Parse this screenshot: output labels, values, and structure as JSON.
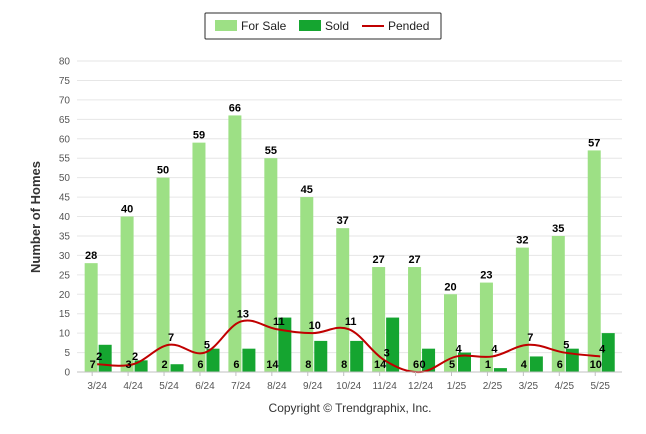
{
  "colors": {
    "for_sale": "#9de085",
    "sold": "#15a530",
    "pended": "#c00000"
  },
  "chart_data": {
    "type": "bar",
    "categories": [
      "3/24",
      "4/24",
      "5/24",
      "6/24",
      "7/24",
      "8/24",
      "9/24",
      "10/24",
      "11/24",
      "12/24",
      "1/25",
      "2/25",
      "3/25",
      "4/25",
      "5/25"
    ],
    "series": [
      {
        "name": "For Sale",
        "type": "bar",
        "values": [
          28,
          40,
          50,
          59,
          66,
          55,
          45,
          37,
          27,
          27,
          20,
          23,
          32,
          35,
          57
        ]
      },
      {
        "name": "Sold",
        "type": "bar",
        "values": [
          7,
          3,
          2,
          6,
          6,
          14,
          8,
          8,
          14,
          6,
          5,
          1,
          4,
          6,
          10
        ]
      },
      {
        "name": "Pended",
        "type": "line",
        "values": [
          2,
          2,
          7,
          5,
          13,
          11,
          10,
          11,
          3,
          0,
          4,
          4,
          7,
          5,
          4
        ]
      }
    ],
    "ylabel": "Number of Homes",
    "xlabel": "",
    "ylim": [
      0,
      80
    ],
    "yticks": [
      0,
      5,
      10,
      15,
      20,
      25,
      30,
      35,
      40,
      45,
      50,
      55,
      60,
      65,
      70,
      75,
      80
    ],
    "grid": true,
    "legend_position": "top-center",
    "footer": "Copyright © Trendgraphix, Inc."
  }
}
